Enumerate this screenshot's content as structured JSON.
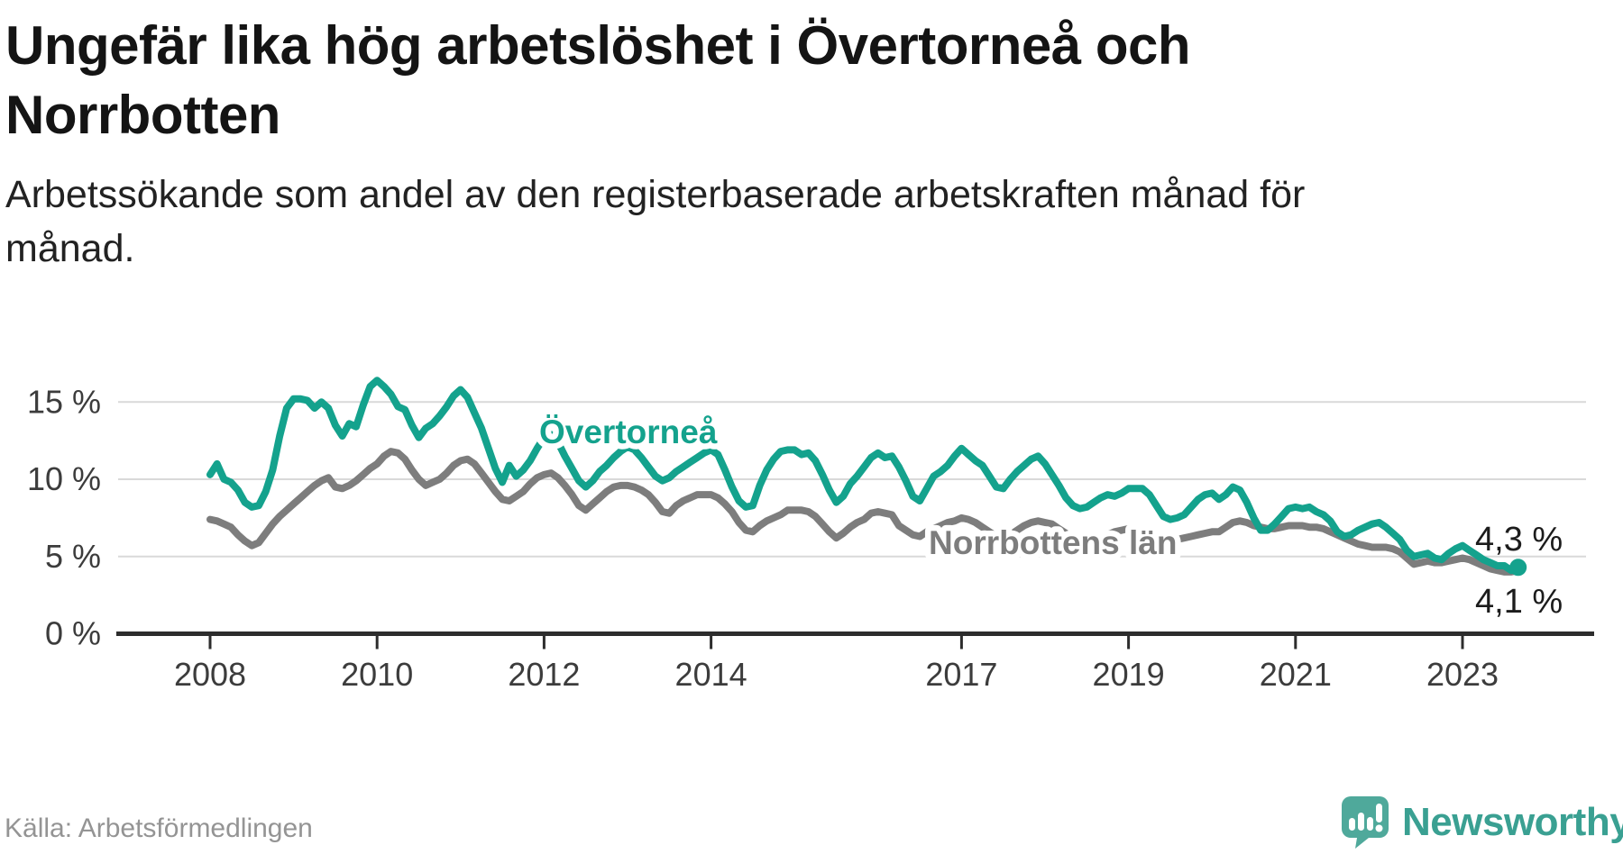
{
  "header": {
    "title": "Ungefär lika hög arbetslöshet i Övertorneå och Norrbotten",
    "subtitle": "Arbetssökande som andel av den registerbaserade arbetskraften månad för månad."
  },
  "footer": {
    "source": "Källa: Arbetsförmedlingen",
    "brand": "Newsworthy",
    "brand_icon": "bar-chart-speech-bubble-icon"
  },
  "colors": {
    "overtornea_teal": "#14a28d",
    "norrbotten_gray": "#7d7d7d",
    "gridline": "#d9d9d9",
    "axis": "#2d2d2d",
    "axis_text": "#3c3c3c",
    "end_label_text": "#1c1c1c",
    "title_text": "#141414",
    "source_text": "#949494",
    "brand_teal": "#3aa092"
  },
  "chart_data": {
    "type": "line",
    "title": "Ungefär lika hög arbetslöshet i Övertorneå och Norrbotten",
    "xlabel": "",
    "ylabel": "",
    "y_unit": "%",
    "ylim": [
      0,
      17.5
    ],
    "x_range_months": [
      "2008-01",
      "2023-09"
    ],
    "grid": "horizontal-only",
    "legend_position": "inline-labels-on-lines",
    "y_ticks": [
      {
        "value": 0,
        "label": "0 %"
      },
      {
        "value": 5,
        "label": "5 %"
      },
      {
        "value": 10,
        "label": "10 %"
      },
      {
        "value": 15,
        "label": "15 %"
      }
    ],
    "x_ticks": [
      {
        "year": 2008,
        "label": "2008"
      },
      {
        "year": 2010,
        "label": "2010"
      },
      {
        "year": 2012,
        "label": "2012"
      },
      {
        "year": 2014,
        "label": "2014"
      },
      {
        "year": 2017,
        "label": "2017"
      },
      {
        "year": 2019,
        "label": "2019"
      },
      {
        "year": 2021,
        "label": "2021"
      },
      {
        "year": 2023,
        "label": "2023"
      }
    ],
    "series": [
      {
        "id": "overtornea",
        "name": "Övertorneå",
        "color": "#14a28d",
        "end_label": "4,3 %",
        "end_value": 4.3,
        "end_dot": true,
        "values": [
          10.3,
          11.0,
          10.0,
          9.8,
          9.3,
          8.5,
          8.2,
          8.3,
          9.2,
          10.6,
          12.8,
          14.6,
          15.2,
          15.2,
          15.1,
          14.6,
          15.0,
          14.6,
          13.5,
          12.8,
          13.6,
          13.4,
          14.8,
          16.0,
          16.4,
          16.0,
          15.5,
          14.7,
          14.5,
          13.5,
          12.7,
          13.3,
          13.6,
          14.1,
          14.7,
          15.4,
          15.8,
          15.3,
          14.3,
          13.3,
          12.0,
          10.7,
          9.8,
          10.9,
          10.2,
          10.6,
          11.2,
          12.0,
          12.7,
          12.9,
          12.4,
          11.5,
          10.7,
          9.9,
          9.5,
          9.9,
          10.5,
          10.9,
          11.4,
          11.8,
          12.1,
          11.9,
          11.4,
          10.8,
          10.2,
          9.9,
          10.1,
          10.5,
          10.8,
          11.1,
          11.4,
          11.7,
          11.9,
          11.6,
          10.6,
          9.5,
          8.6,
          8.2,
          8.3,
          9.6,
          10.6,
          11.3,
          11.8,
          11.9,
          11.9,
          11.6,
          11.7,
          11.2,
          10.3,
          9.3,
          8.5,
          8.9,
          9.7,
          10.2,
          10.8,
          11.4,
          11.7,
          11.4,
          11.5,
          10.8,
          9.9,
          8.9,
          8.6,
          9.4,
          10.2,
          10.5,
          10.9,
          11.5,
          12.0,
          11.6,
          11.2,
          10.9,
          10.2,
          9.5,
          9.4,
          10.0,
          10.5,
          10.9,
          11.3,
          11.5,
          11.0,
          10.3,
          9.6,
          8.8,
          8.3,
          8.1,
          8.2,
          8.5,
          8.8,
          9.0,
          8.9,
          9.1,
          9.4,
          9.4,
          9.4,
          9.0,
          8.3,
          7.6,
          7.4,
          7.5,
          7.7,
          8.2,
          8.7,
          9.0,
          9.1,
          8.7,
          9.0,
          9.5,
          9.3,
          8.5,
          7.5,
          6.7,
          6.7,
          7.1,
          7.6,
          8.1,
          8.2,
          8.1,
          8.2,
          7.9,
          7.7,
          7.3,
          6.6,
          6.3,
          6.4,
          6.7,
          6.9,
          7.1,
          7.2,
          6.9,
          6.5,
          6.1,
          5.4,
          5.0,
          5.1,
          5.2,
          4.9,
          4.8,
          5.2,
          5.5,
          5.7,
          5.4,
          5.1,
          4.8,
          4.6,
          4.4,
          4.4,
          4.1,
          4.3
        ]
      },
      {
        "id": "norrbottens-lan",
        "name": "Norrbottens län",
        "color": "#7d7d7d",
        "end_label": "4,1 %",
        "end_value": 4.1,
        "end_dot": false,
        "values": [
          7.4,
          7.3,
          7.1,
          6.9,
          6.4,
          6.0,
          5.7,
          5.9,
          6.5,
          7.1,
          7.6,
          8.0,
          8.4,
          8.8,
          9.2,
          9.6,
          9.9,
          10.1,
          9.5,
          9.4,
          9.6,
          9.9,
          10.3,
          10.7,
          11.0,
          11.5,
          11.8,
          11.7,
          11.3,
          10.6,
          10.0,
          9.6,
          9.8,
          10.0,
          10.4,
          10.9,
          11.2,
          11.3,
          11.0,
          10.4,
          9.8,
          9.2,
          8.7,
          8.6,
          8.9,
          9.2,
          9.7,
          10.1,
          10.3,
          10.4,
          10.1,
          9.6,
          9.0,
          8.3,
          8.0,
          8.4,
          8.8,
          9.2,
          9.5,
          9.6,
          9.6,
          9.5,
          9.3,
          9.0,
          8.5,
          7.9,
          7.8,
          8.3,
          8.6,
          8.8,
          9.0,
          9.0,
          9.0,
          8.8,
          8.4,
          7.9,
          7.2,
          6.7,
          6.6,
          7.0,
          7.3,
          7.5,
          7.7,
          8.0,
          8.0,
          8.0,
          7.9,
          7.6,
          7.1,
          6.6,
          6.2,
          6.5,
          6.9,
          7.2,
          7.4,
          7.8,
          7.9,
          7.8,
          7.7,
          7.0,
          6.7,
          6.4,
          6.3,
          6.6,
          6.8,
          7.0,
          7.2,
          7.3,
          7.5,
          7.4,
          7.2,
          6.9,
          6.6,
          6.3,
          6.2,
          6.4,
          6.7,
          7.0,
          7.2,
          7.3,
          7.2,
          7.1,
          6.8,
          6.5,
          6.2,
          5.9,
          5.9,
          6.0,
          6.2,
          6.4,
          6.6,
          6.7,
          6.8,
          6.8,
          6.7,
          6.5,
          6.3,
          6.1,
          6.0,
          6.1,
          6.2,
          6.3,
          6.4,
          6.5,
          6.6,
          6.6,
          6.9,
          7.2,
          7.3,
          7.2,
          7.0,
          6.9,
          6.8,
          6.8,
          6.9,
          7.0,
          7.0,
          7.0,
          6.9,
          6.9,
          6.8,
          6.6,
          6.4,
          6.2,
          6.0,
          5.8,
          5.7,
          5.6,
          5.6,
          5.6,
          5.5,
          5.3,
          4.9,
          4.5,
          4.6,
          4.7,
          4.6,
          4.6,
          4.7,
          4.8,
          4.9,
          4.8,
          4.6,
          4.4,
          4.2,
          4.1,
          4.0,
          4.0,
          4.1
        ]
      }
    ]
  }
}
